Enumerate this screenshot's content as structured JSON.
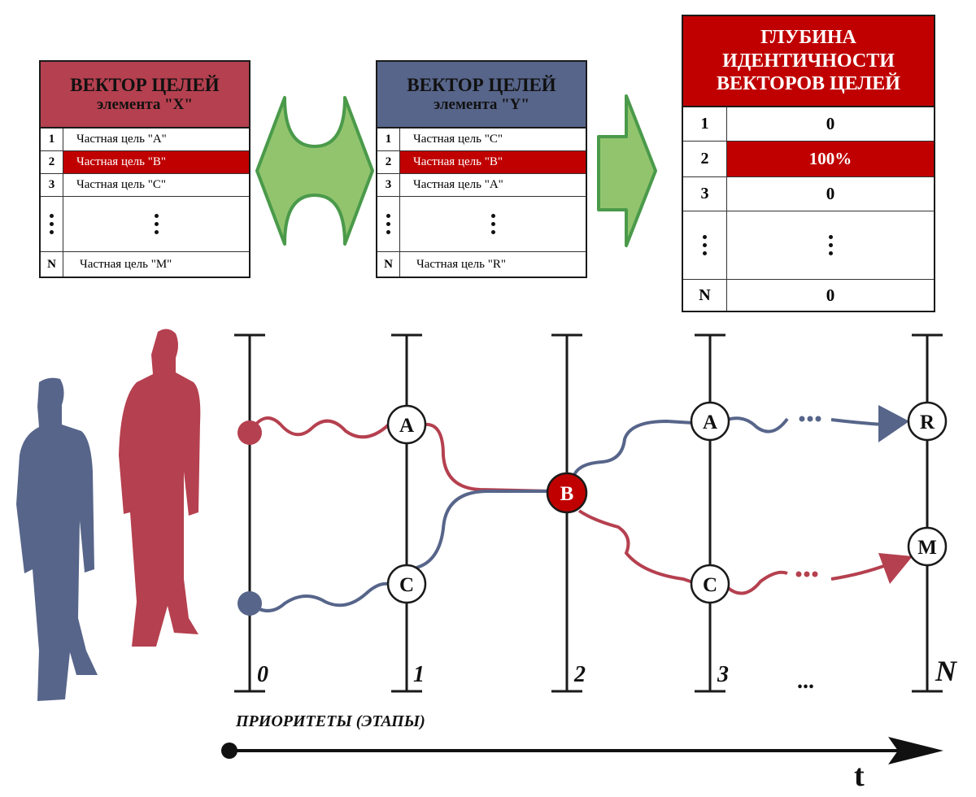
{
  "vector_x": {
    "title": "ВЕКТОР ЦЕЛЕЙ",
    "subtitle": "элемента \"X\"",
    "header_color": "#b5404f",
    "rows": [
      {
        "num": "1",
        "label": "Частная цель \"A\""
      },
      {
        "num": "2",
        "label": "Частная цель \"B\"",
        "highlight": true
      },
      {
        "num": "3",
        "label": "Частная цель \"C\""
      },
      {
        "num": "⋮",
        "label": "⋮",
        "dots": true
      },
      {
        "num": "N",
        "label": "Частная цель \"M\""
      }
    ]
  },
  "vector_y": {
    "title": "ВЕКТОР ЦЕЛЕЙ",
    "subtitle": "элемента \"Y\"",
    "header_color": "#57658a",
    "rows": [
      {
        "num": "1",
        "label": "Частная цель \"C\""
      },
      {
        "num": "2",
        "label": "Частная цель \"B\"",
        "highlight": true
      },
      {
        "num": "3",
        "label": "Частная цель \"A\""
      },
      {
        "num": "⋮",
        "label": "⋮",
        "dots": true
      },
      {
        "num": "N",
        "label": "Частная цель \"R\""
      }
    ]
  },
  "depth_table": {
    "title_lines": [
      "ГЛУБИНА",
      "ИДЕНТИЧНОСТИ",
      "ВЕКТОРОВ ЦЕЛЕЙ"
    ],
    "header_color": "#c00000",
    "rows": [
      {
        "num": "1",
        "value": "0"
      },
      {
        "num": "2",
        "value": "100%",
        "highlight": true
      },
      {
        "num": "3",
        "value": "0"
      },
      {
        "num": "⋮",
        "value": "⋮",
        "dots": true
      },
      {
        "num": "N",
        "value": "0"
      }
    ]
  },
  "stages": {
    "axis_label": "ПРИОРИТЕТЫ (ЭТАПЫ)",
    "labels": [
      "0",
      "1",
      "2",
      "3",
      "...",
      "N"
    ],
    "time_label": "t",
    "ellipsis": "..."
  },
  "nodes": {
    "A1": "A",
    "C1": "C",
    "B2": "B",
    "A3": "A",
    "C3": "C",
    "R": "R",
    "M": "M"
  },
  "colors": {
    "red": "#b5404f",
    "blue": "#57658a",
    "highlight": "#c00000",
    "arrow_green": "#92c46e",
    "arrow_border": "#4a9a4a"
  }
}
